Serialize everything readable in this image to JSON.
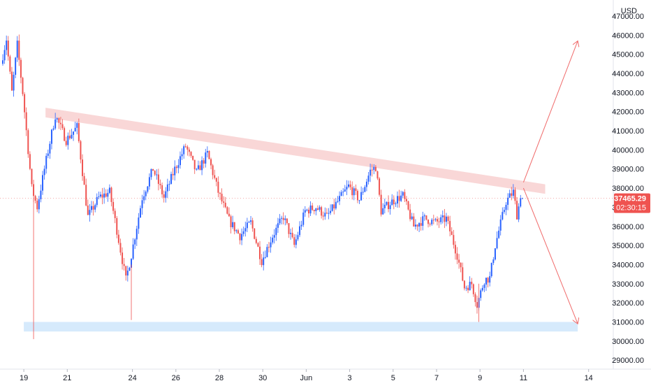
{
  "header": {
    "currency": "USD"
  },
  "price_label": {
    "price": "37465.29",
    "countdown": "02:30:15"
  },
  "colors": {
    "up": "#2962ff",
    "down": "#ef5350",
    "resistance_fill": "#f7c6c6",
    "support_fill": "#cfe6fb",
    "projection": "#f06b6b",
    "grid": "#f0f3fa",
    "text": "#131722",
    "current_price_line": "#f2a5a5"
  },
  "chart_data": {
    "type": "candlestick",
    "title": "",
    "xlabel": "",
    "ylabel": "",
    "y_axis": {
      "currency": "USD",
      "range": [
        28000,
        47500
      ],
      "ticks": [
        29000,
        30000,
        31000,
        32000,
        33000,
        34000,
        35000,
        36000,
        37000,
        38000,
        39000,
        40000,
        41000,
        42000,
        43000,
        44000,
        45000,
        46000,
        47000
      ],
      "tick_labels": [
        "29000.00",
        "30000.00",
        "31000.00",
        "32000.00",
        "33000.00",
        "34000.00",
        "35000.00",
        "36000.00",
        "37000.00",
        "38000.00",
        "39000.00",
        "40000.00",
        "41000.00",
        "42000.00",
        "43000.00",
        "44000.00",
        "45000.00",
        "46000.00",
        "47000.00"
      ]
    },
    "x_axis": {
      "range": [
        "May 18",
        "Jun 14"
      ],
      "ticks": [
        {
          "date": "May 19",
          "label": "19"
        },
        {
          "date": "May 21",
          "label": "21"
        },
        {
          "date": "May 24",
          "label": "24"
        },
        {
          "date": "May 26",
          "label": "26"
        },
        {
          "date": "May 28",
          "label": "28"
        },
        {
          "date": "May 30",
          "label": "30"
        },
        {
          "date": "Jun 1",
          "label": "Jun"
        },
        {
          "date": "Jun 3",
          "label": "3"
        },
        {
          "date": "Jun 5",
          "label": "5"
        },
        {
          "date": "Jun 7",
          "label": "7"
        },
        {
          "date": "Jun 9",
          "label": "9"
        },
        {
          "date": "Jun 11",
          "label": "11"
        },
        {
          "date": "Jun 14",
          "label": "14"
        }
      ]
    },
    "candle_interval": "2h",
    "anchors": [
      {
        "date": "May 18 00:00",
        "price": 44500
      },
      {
        "date": "May 18 06:00",
        "price": 45800
      },
      {
        "date": "May 18 12:00",
        "price": 43000
      },
      {
        "date": "May 18 18:00",
        "price": 45500
      },
      {
        "date": "May 19 00:00",
        "price": 43000
      },
      {
        "date": "May 19 06:00",
        "price": 40000
      },
      {
        "date": "May 19 10:00",
        "price": 38000
      },
      {
        "date": "May 19 16:00",
        "price": 37000
      },
      {
        "date": "May 20 00:00",
        "price": 39000
      },
      {
        "date": "May 20 12:00",
        "price": 41800
      },
      {
        "date": "May 21 00:00",
        "price": 40500
      },
      {
        "date": "May 21 12:00",
        "price": 41200
      },
      {
        "date": "May 22 00:00",
        "price": 36500
      },
      {
        "date": "May 22 12:00",
        "price": 37500
      },
      {
        "date": "May 23 00:00",
        "price": 37800
      },
      {
        "date": "May 23 08:00",
        "price": 35800
      },
      {
        "date": "May 23 18:00",
        "price": 33200
      },
      {
        "date": "May 24 00:00",
        "price": 34500
      },
      {
        "date": "May 24 12:00",
        "price": 37500
      },
      {
        "date": "May 25 00:00",
        "price": 39000
      },
      {
        "date": "May 25 12:00",
        "price": 37500
      },
      {
        "date": "May 26 00:00",
        "price": 39000
      },
      {
        "date": "May 26 12:00",
        "price": 40200
      },
      {
        "date": "May 27 00:00",
        "price": 38800
      },
      {
        "date": "May 27 12:00",
        "price": 39800
      },
      {
        "date": "May 28 00:00",
        "price": 37800
      },
      {
        "date": "May 28 12:00",
        "price": 36300
      },
      {
        "date": "May 29 00:00",
        "price": 35500
      },
      {
        "date": "May 29 12:00",
        "price": 36200
      },
      {
        "date": "May 30 00:00",
        "price": 34200
      },
      {
        "date": "May 30 12:00",
        "price": 35500
      },
      {
        "date": "May 31 00:00",
        "price": 36500
      },
      {
        "date": "May 31 12:00",
        "price": 35000
      },
      {
        "date": "Jun 1 00:00",
        "price": 36800
      },
      {
        "date": "Jun 1 12:00",
        "price": 37000
      },
      {
        "date": "Jun 2 00:00",
        "price": 36500
      },
      {
        "date": "Jun 2 12:00",
        "price": 37300
      },
      {
        "date": "Jun 3 00:00",
        "price": 38100
      },
      {
        "date": "Jun 3 12:00",
        "price": 37400
      },
      {
        "date": "Jun 4 00:00",
        "price": 38900
      },
      {
        "date": "Jun 4 06:00",
        "price": 39100
      },
      {
        "date": "Jun 4 12:00",
        "price": 36800
      },
      {
        "date": "Jun 5 00:00",
        "price": 37300
      },
      {
        "date": "Jun 5 12:00",
        "price": 37600
      },
      {
        "date": "Jun 6 00:00",
        "price": 36000
      },
      {
        "date": "Jun 6 12:00",
        "price": 36400
      },
      {
        "date": "Jun 7 00:00",
        "price": 36200
      },
      {
        "date": "Jun 7 12:00",
        "price": 36400
      },
      {
        "date": "Jun 8 00:00",
        "price": 34500
      },
      {
        "date": "Jun 8 08:00",
        "price": 32800
      },
      {
        "date": "Jun 8 16:00",
        "price": 33000
      },
      {
        "date": "Jun 8 22:00",
        "price": 31900
      },
      {
        "date": "Jun 9 06:00",
        "price": 33200
      },
      {
        "date": "Jun 9 12:00",
        "price": 33300
      },
      {
        "date": "Jun 9 18:00",
        "price": 35000
      },
      {
        "date": "Jun 10 06:00",
        "price": 37300
      },
      {
        "date": "Jun 10 14:00",
        "price": 37800
      },
      {
        "date": "Jun 10 18:00",
        "price": 36600
      },
      {
        "date": "Jun 10 22:00",
        "price": 37465
      }
    ],
    "drawings": {
      "resistance_band": {
        "start": {
          "date": "May 20 00:00",
          "price_top": 42200,
          "price_bottom": 41700
        },
        "end": {
          "date": "Jun 12 00:00",
          "price_top": 38200,
          "price_bottom": 37700
        }
      },
      "support_band": {
        "date_start": "May 19 00:00",
        "date_end": "Jun 13 12:00",
        "price_top": 31000,
        "price_bottom": 30500
      },
      "projection_up": {
        "from": {
          "date": "Jun 11 00:00",
          "price": 38300
        },
        "to": {
          "date": "Jun 13 12:00",
          "price": 45700
        }
      },
      "projection_down": {
        "from": {
          "date": "Jun 11 00:00",
          "price": 38000
        },
        "to": {
          "date": "Jun 13 12:00",
          "price": 30900
        }
      }
    },
    "current_price": 37465.29,
    "grid": false,
    "legend": "none"
  }
}
